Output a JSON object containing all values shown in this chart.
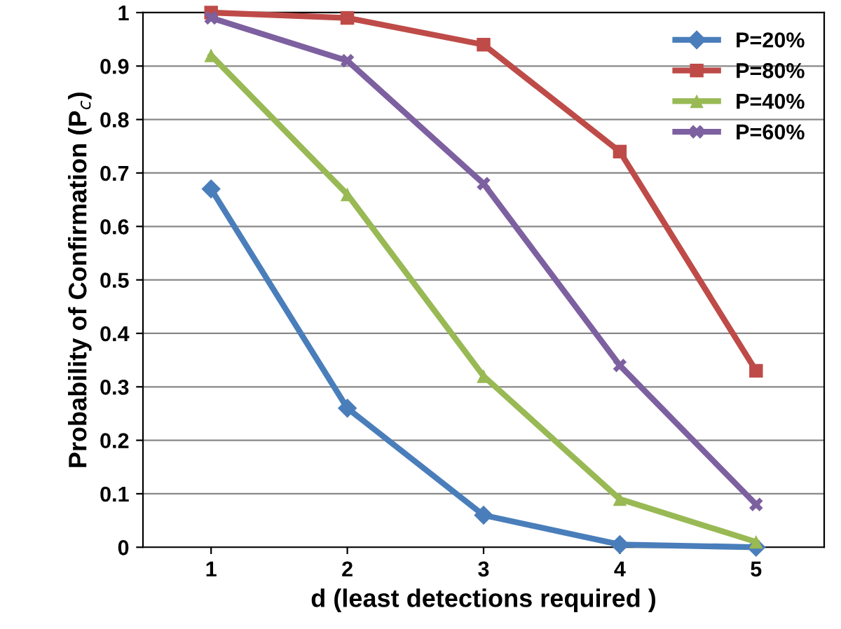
{
  "chart_data": {
    "type": "line",
    "xlabel": "d (least detections required )",
    "ylabel": "Probability of Confirmation (P$_{c}$)",
    "categories": [
      "1",
      "2",
      "3",
      "4",
      "5"
    ],
    "series": [
      {
        "name": "P=20%",
        "color": "#4a7ebb",
        "marker": "diamond",
        "values": [
          0.67,
          0.26,
          0.06,
          0.005,
          0.0
        ]
      },
      {
        "name": "P=80%",
        "color": "#be4b48",
        "marker": "square",
        "values": [
          1.0,
          0.99,
          0.94,
          0.74,
          0.33
        ]
      },
      {
        "name": "P=40%",
        "color": "#98b954",
        "marker": "triangle",
        "values": [
          0.92,
          0.66,
          0.32,
          0.09,
          0.01
        ]
      },
      {
        "name": "P=60%",
        "color": "#7d60a0",
        "marker": "cross",
        "values": [
          0.99,
          0.91,
          0.68,
          0.34,
          0.08
        ]
      }
    ],
    "ylim": [
      0,
      1
    ],
    "yticks": [
      0,
      0.1,
      0.2,
      0.3,
      0.4,
      0.5,
      0.6,
      0.7,
      0.8,
      0.9,
      1
    ],
    "grid": "y",
    "legend": "top right",
    "line_style": "solid"
  }
}
